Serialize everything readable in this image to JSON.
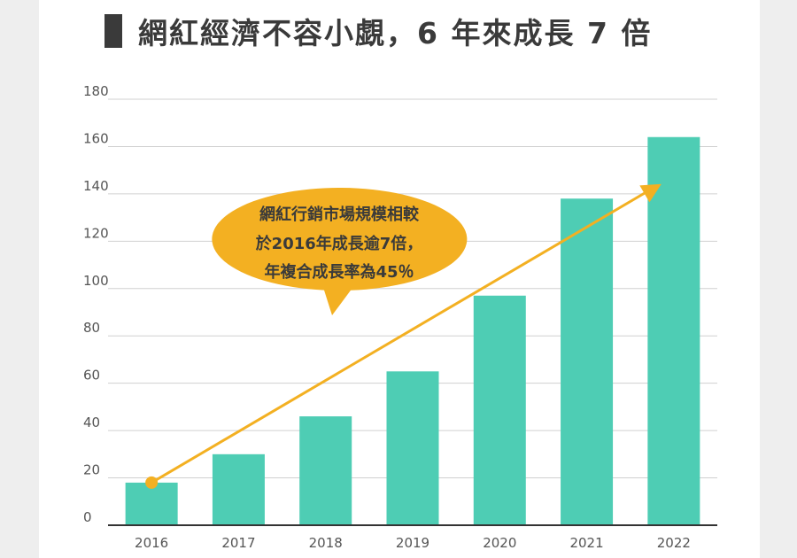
{
  "title": "網紅經濟不容小覷，6 年來成長 7 倍",
  "colors": {
    "bar": "#4ecdb4",
    "arrow": "#f3b022",
    "bubble": "#f3b022",
    "grid": "#d0d0d0",
    "baseline": "#333333"
  },
  "callout": {
    "lines": [
      "網紅行銷市場規模相較",
      "於2016年成長逾7倍，",
      "年複合成長率為45％"
    ]
  },
  "chart_data": {
    "type": "bar",
    "categories": [
      "2016",
      "2017",
      "2018",
      "2019",
      "2020",
      "2021",
      "2022"
    ],
    "values": [
      18,
      30,
      46,
      65,
      97,
      138,
      164
    ],
    "ylim": [
      0,
      180
    ],
    "yticks": [
      0,
      20,
      40,
      60,
      80,
      100,
      120,
      140,
      160,
      180
    ],
    "grid": true,
    "trend_arrow": {
      "from": "2016",
      "to": "2022"
    }
  }
}
